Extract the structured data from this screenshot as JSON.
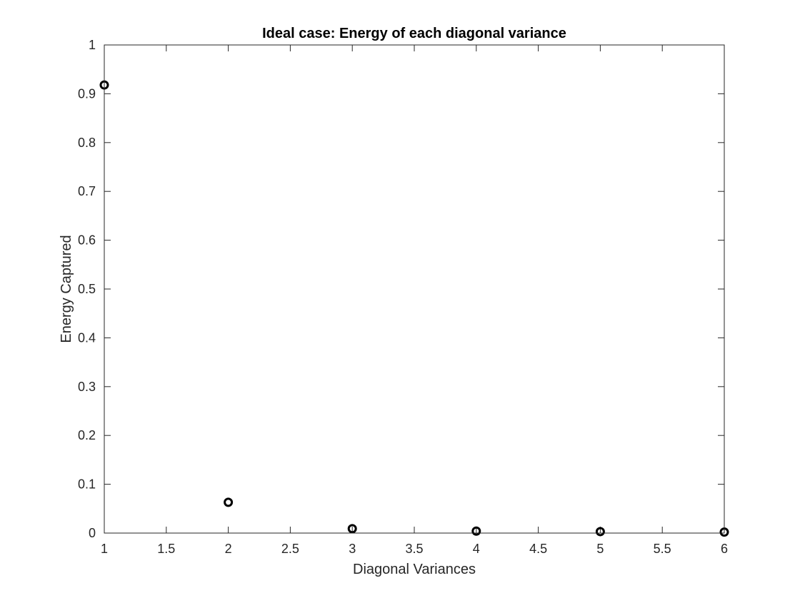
{
  "chart_data": {
    "type": "scatter",
    "title": "Ideal case: Energy of each diagonal variance",
    "xlabel": "Diagonal Variances",
    "ylabel": "Energy Captured",
    "xlim": [
      1,
      6
    ],
    "ylim": [
      0,
      1
    ],
    "xticks": [
      1,
      1.5,
      2,
      2.5,
      3,
      3.5,
      4,
      4.5,
      5,
      5.5,
      6
    ],
    "yticks": [
      0,
      0.1,
      0.2,
      0.3,
      0.4,
      0.5,
      0.6,
      0.7,
      0.8,
      0.9,
      1
    ],
    "grid": false,
    "marker": "circle",
    "marker_color": "#000000",
    "series": [
      {
        "x": [
          1,
          2,
          3,
          4,
          5,
          6
        ],
        "y": [
          0.918,
          0.063,
          0.009,
          0.004,
          0.003,
          0.002
        ]
      }
    ]
  }
}
